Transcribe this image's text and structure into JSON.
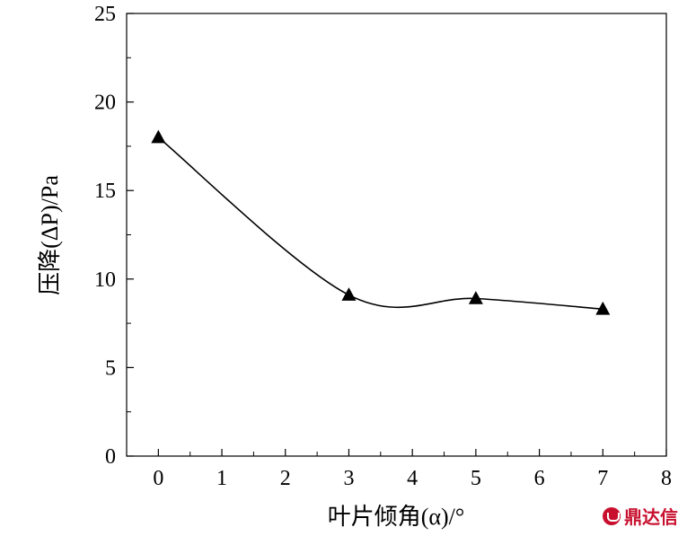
{
  "chart_data": {
    "type": "line",
    "xlabel": "叶片倾角(α)/°",
    "ylabel": "压降(ΔP)/Pa",
    "xlim": [
      -0.5,
      8
    ],
    "ylim": [
      0,
      25
    ],
    "x_ticks": [
      0,
      1,
      2,
      3,
      4,
      5,
      6,
      7,
      8
    ],
    "y_ticks": [
      0,
      5,
      10,
      15,
      20,
      25
    ],
    "grid": false,
    "series": [
      {
        "marker": "triangle",
        "color": "#000000",
        "x": [
          0,
          3,
          5,
          7
        ],
        "y": [
          18.0,
          9.1,
          8.9,
          8.3
        ]
      }
    ]
  },
  "watermark": {
    "text": "鼎达信"
  }
}
